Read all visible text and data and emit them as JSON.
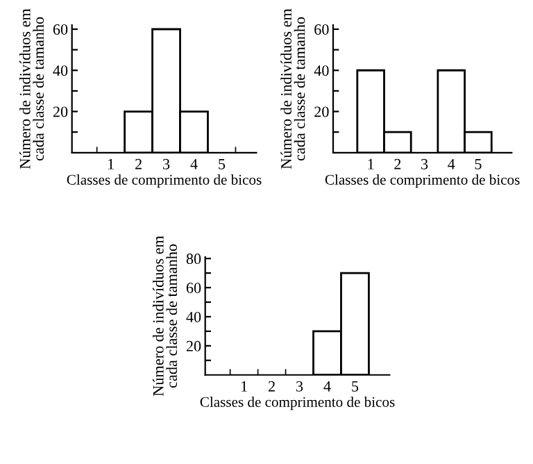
{
  "chart_data": [
    {
      "type": "bar",
      "categories": [
        "1",
        "2",
        "3",
        "4",
        "5"
      ],
      "values": [
        0,
        20,
        60,
        20,
        0
      ],
      "color": "#ffffff",
      "ylim": [
        0,
        62
      ],
      "yticks": [
        {
          "value": 10,
          "label": null
        },
        20,
        {
          "value": 30,
          "label": null
        },
        40,
        {
          "value": 50,
          "label": null
        },
        60
      ],
      "xlabel": "Classes de comprimento de bicos",
      "ylabel": "Número de indivíduos em\ncada classe de tamanho"
    },
    {
      "type": "bar",
      "categories": [
        "1",
        "2",
        "3",
        "4",
        "5"
      ],
      "values": [
        40,
        10,
        0,
        40,
        10
      ],
      "color": "#ffffff",
      "ylim": [
        0,
        62
      ],
      "yticks": [
        {
          "value": 10,
          "label": null
        },
        20,
        {
          "value": 30,
          "label": null
        },
        40,
        {
          "value": 50,
          "label": null
        },
        60
      ],
      "xlabel": "Classes de comprimento de bicos",
      "ylabel": "Número de indivíduos em\ncada classe de tamanho"
    },
    {
      "type": "bar",
      "categories": [
        "1",
        "2",
        "3",
        "4",
        "5"
      ],
      "values": [
        0,
        0,
        0,
        30,
        70
      ],
      "color": "#ffffff",
      "ylim": [
        0,
        81
      ],
      "yticks": [
        {
          "value": 10,
          "label": null
        },
        20,
        {
          "value": 30,
          "label": null
        },
        40,
        {
          "value": 50,
          "label": null
        },
        60,
        {
          "value": 70,
          "label": null
        },
        80
      ],
      "xlabel": "Classes de comprimento de bicos",
      "ylabel": "Número de indivíduos em\ncada classe de tamanho"
    }
  ]
}
